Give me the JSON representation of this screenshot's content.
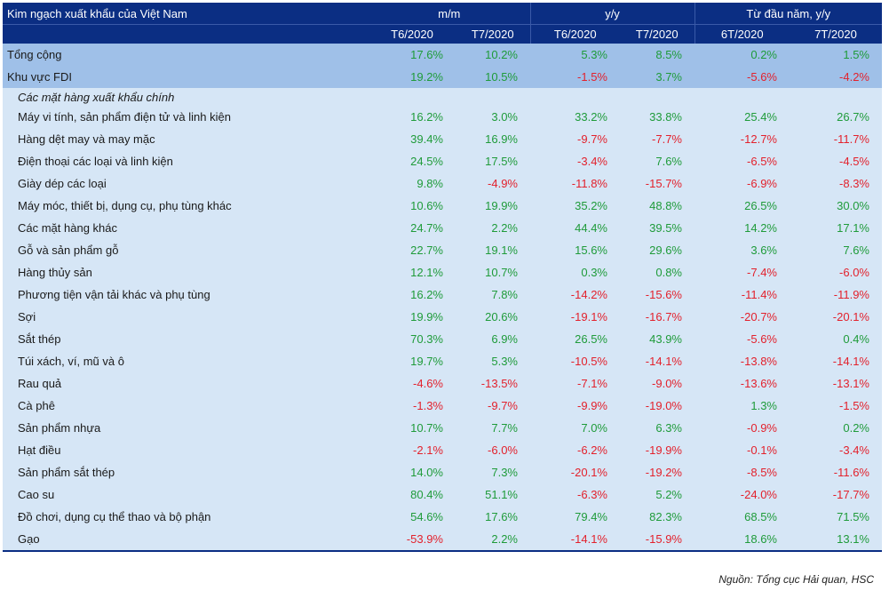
{
  "table": {
    "title": "Kim ngạch xuất khẩu của Việt Nam",
    "groups": [
      "m/m",
      "y/y",
      "Từ đầu năm, y/y"
    ],
    "periods": [
      "T6/2020",
      "T7/2020",
      "T6/2020",
      "T7/2020",
      "6T/2020",
      "7T/2020"
    ],
    "summary_rows": [
      {
        "label": "Tổng cộng",
        "values": [
          "17.6%",
          "10.2%",
          "5.3%",
          "8.5%",
          "0.2%",
          "1.5%"
        ]
      },
      {
        "label": "Khu vực FDI",
        "values": [
          "19.2%",
          "10.5%",
          "-1.5%",
          "3.7%",
          "-5.6%",
          "-4.2%"
        ]
      }
    ],
    "section_label": "Các mặt hàng xuất khẩu chính",
    "rows": [
      {
        "label": "Máy vi tính, sản phẩm điện tử và linh kiện",
        "values": [
          "16.2%",
          "3.0%",
          "33.2%",
          "33.8%",
          "25.4%",
          "26.7%"
        ]
      },
      {
        "label": "Hàng dệt may và may mặc",
        "values": [
          "39.4%",
          "16.9%",
          "-9.7%",
          "-7.7%",
          "-12.7%",
          "-11.7%"
        ]
      },
      {
        "label": "Điện thoại các loại và linh kiện",
        "values": [
          "24.5%",
          "17.5%",
          "-3.4%",
          "7.6%",
          "-6.5%",
          "-4.5%"
        ]
      },
      {
        "label": "Giày dép các loại",
        "values": [
          "9.8%",
          "-4.9%",
          "-11.8%",
          "-15.7%",
          "-6.9%",
          "-8.3%"
        ]
      },
      {
        "label": "Máy móc, thiết bị, dụng cụ, phụ tùng khác",
        "values": [
          "10.6%",
          "19.9%",
          "35.2%",
          "48.8%",
          "26.5%",
          "30.0%"
        ]
      },
      {
        "label": "Các mặt hàng khác",
        "values": [
          "24.7%",
          "2.2%",
          "44.4%",
          "39.5%",
          "14.2%",
          "17.1%"
        ]
      },
      {
        "label": "Gỗ và sản phẩm gỗ",
        "values": [
          "22.7%",
          "19.1%",
          "15.6%",
          "29.6%",
          "3.6%",
          "7.6%"
        ]
      },
      {
        "label": "Hàng thủy sản",
        "values": [
          "12.1%",
          "10.7%",
          "0.3%",
          "0.8%",
          "-7.4%",
          "-6.0%"
        ]
      },
      {
        "label": "Phương tiện vận tải khác và phụ tùng",
        "values": [
          "16.2%",
          "7.8%",
          "-14.2%",
          "-15.6%",
          "-11.4%",
          "-11.9%"
        ]
      },
      {
        "label": "Sợi",
        "values": [
          "19.9%",
          "20.6%",
          "-19.1%",
          "-16.7%",
          "-20.7%",
          "-20.1%"
        ]
      },
      {
        "label": "Sắt thép",
        "values": [
          "70.3%",
          "6.9%",
          "26.5%",
          "43.9%",
          "-5.6%",
          "0.4%"
        ]
      },
      {
        "label": "Túi xách, ví, mũ và ô",
        "values": [
          "19.7%",
          "5.3%",
          "-10.5%",
          "-14.1%",
          "-13.8%",
          "-14.1%"
        ]
      },
      {
        "label": "Rau quả",
        "values": [
          "-4.6%",
          "-13.5%",
          "-7.1%",
          "-9.0%",
          "-13.6%",
          "-13.1%"
        ]
      },
      {
        "label": "Cà phê",
        "values": [
          "-1.3%",
          "-9.7%",
          "-9.9%",
          "-19.0%",
          "1.3%",
          "-1.5%"
        ]
      },
      {
        "label": "Sản phẩm nhựa",
        "values": [
          "10.7%",
          "7.7%",
          "7.0%",
          "6.3%",
          "-0.9%",
          "0.2%"
        ]
      },
      {
        "label": "Hạt điều",
        "values": [
          "-2.1%",
          "-6.0%",
          "-6.2%",
          "-19.9%",
          "-0.1%",
          "-3.4%"
        ]
      },
      {
        "label": "Sản phẩm sắt thép",
        "values": [
          "14.0%",
          "7.3%",
          "-20.1%",
          "-19.2%",
          "-8.5%",
          "-11.6%"
        ]
      },
      {
        "label": "Cao su",
        "values": [
          "80.4%",
          "51.1%",
          "-6.3%",
          "5.2%",
          "-24.0%",
          "-17.7%"
        ]
      },
      {
        "label": "Đồ chơi, dụng cụ thể thao và bộ phận",
        "values": [
          "54.6%",
          "17.6%",
          "79.4%",
          "82.3%",
          "68.5%",
          "71.5%"
        ]
      },
      {
        "label": "Gạo",
        "values": [
          "-53.9%",
          "2.2%",
          "-14.1%",
          "-15.9%",
          "18.6%",
          "13.1%"
        ]
      }
    ]
  },
  "source": "Nguồn: Tổng cục Hải quan, HSC",
  "colors": {
    "header_bg": "#0b2e83",
    "positive": "#1f9b3a",
    "negative": "#e3212c",
    "summary_bg": "#9fc0e8",
    "body_bg": "#d6e6f6"
  }
}
